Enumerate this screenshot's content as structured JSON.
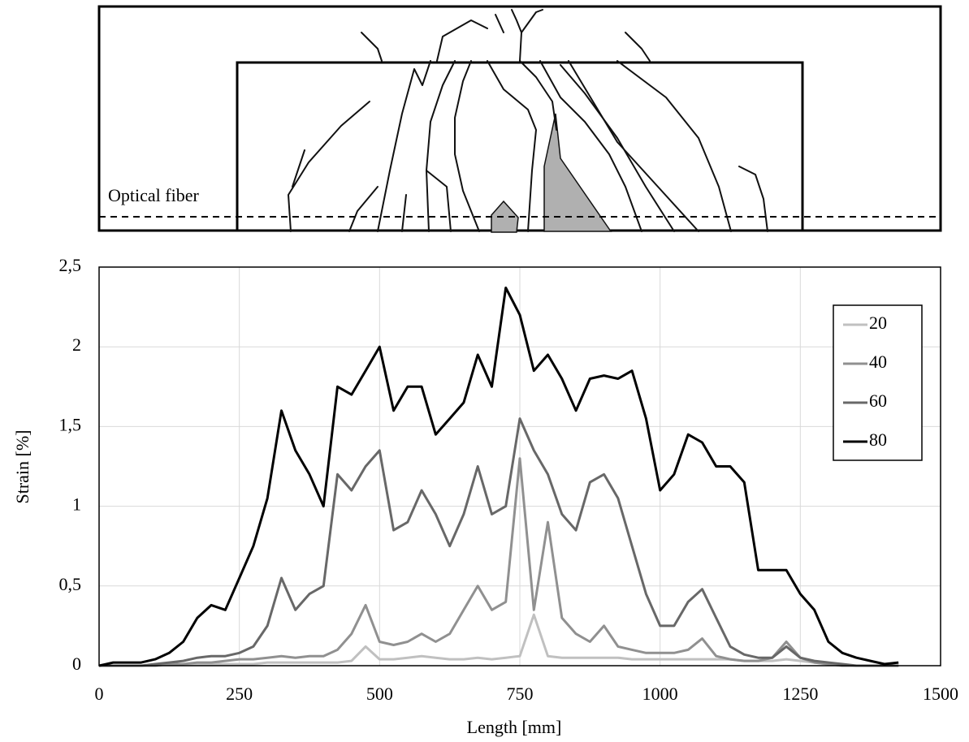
{
  "diagram": {
    "label": "Optical fiber"
  },
  "chart_data": {
    "type": "line",
    "x_label": "Length [mm]",
    "y_label": "Strain [%]",
    "x": [
      0,
      25,
      50,
      75,
      100,
      125,
      150,
      175,
      200,
      225,
      250,
      275,
      300,
      325,
      350,
      375,
      400,
      425,
      450,
      475,
      500,
      525,
      550,
      575,
      600,
      625,
      650,
      675,
      700,
      725,
      750,
      775,
      800,
      825,
      850,
      875,
      900,
      925,
      950,
      975,
      1000,
      1025,
      1050,
      1075,
      1100,
      1125,
      1150,
      1175,
      1200,
      1225,
      1250,
      1275,
      1300,
      1325,
      1350,
      1375,
      1400,
      1425
    ],
    "series": [
      {
        "name": "20",
        "color": "#c0c0c0",
        "values": [
          0,
          0,
          0,
          0,
          0,
          0.01,
          0.01,
          0.01,
          0.01,
          0.01,
          0.01,
          0.01,
          0.02,
          0.02,
          0.02,
          0.02,
          0.02,
          0.02,
          0.03,
          0.12,
          0.04,
          0.04,
          0.05,
          0.06,
          0.05,
          0.04,
          0.04,
          0.05,
          0.04,
          0.05,
          0.06,
          0.32,
          0.06,
          0.05,
          0.05,
          0.05,
          0.05,
          0.05,
          0.04,
          0.04,
          0.04,
          0.04,
          0.04,
          0.04,
          0.04,
          0.04,
          0.03,
          0.03,
          0.03,
          0.04,
          0.03,
          0.02,
          0.01,
          0,
          0,
          0,
          0,
          0
        ]
      },
      {
        "name": "40",
        "color": "#909090",
        "values": [
          0,
          0,
          0,
          0,
          0,
          0.01,
          0.01,
          0.02,
          0.02,
          0.03,
          0.04,
          0.04,
          0.05,
          0.06,
          0.05,
          0.06,
          0.06,
          0.1,
          0.2,
          0.38,
          0.15,
          0.13,
          0.15,
          0.2,
          0.15,
          0.2,
          0.35,
          0.5,
          0.35,
          0.4,
          1.3,
          0.35,
          0.9,
          0.3,
          0.2,
          0.15,
          0.25,
          0.12,
          0.1,
          0.08,
          0.08,
          0.08,
          0.1,
          0.17,
          0.06,
          0.04,
          0.03,
          0.03,
          0.05,
          0.15,
          0.05,
          0.02,
          0.01,
          0,
          0,
          0,
          0,
          0
        ]
      },
      {
        "name": "60",
        "color": "#686868",
        "values": [
          0,
          0,
          0,
          0,
          0.01,
          0.02,
          0.03,
          0.05,
          0.06,
          0.06,
          0.08,
          0.12,
          0.25,
          0.55,
          0.35,
          0.45,
          0.5,
          1.2,
          1.1,
          1.25,
          1.35,
          0.85,
          0.9,
          1.1,
          0.95,
          0.75,
          0.95,
          1.25,
          0.95,
          1.0,
          1.55,
          1.35,
          1.2,
          0.95,
          0.85,
          1.15,
          1.2,
          1.05,
          0.75,
          0.45,
          0.25,
          0.25,
          0.4,
          0.48,
          0.3,
          0.12,
          0.07,
          0.05,
          0.05,
          0.12,
          0.05,
          0.03,
          0.02,
          0.01,
          0,
          0,
          0,
          0
        ]
      },
      {
        "name": "80",
        "color": "#000000",
        "values": [
          0,
          0.02,
          0.02,
          0.02,
          0.04,
          0.08,
          0.15,
          0.3,
          0.38,
          0.35,
          0.55,
          0.75,
          1.05,
          1.6,
          1.35,
          1.2,
          1.0,
          1.75,
          1.7,
          1.85,
          2.0,
          1.6,
          1.75,
          1.75,
          1.45,
          1.55,
          1.65,
          1.95,
          1.75,
          2.37,
          2.2,
          1.85,
          1.95,
          1.8,
          1.6,
          1.8,
          1.82,
          1.8,
          1.85,
          1.55,
          1.1,
          1.2,
          1.45,
          1.4,
          1.25,
          1.25,
          1.15,
          0.6,
          0.6,
          0.6,
          0.45,
          0.35,
          0.15,
          0.08,
          0.05,
          0.03,
          0.01,
          0.02
        ]
      }
    ],
    "xlim": [
      0,
      1500
    ],
    "xticks": [
      0,
      250,
      500,
      750,
      1000,
      1250,
      1500
    ],
    "ylim": [
      0,
      2.5
    ],
    "yticks": [
      0,
      {
        "value": 0.5,
        "label": "0,5"
      },
      1,
      {
        "value": 1.5,
        "label": "1,5"
      },
      2,
      {
        "value": 2.5,
        "label": "2,5"
      }
    ],
    "grid": true,
    "legend": "upper right"
  }
}
